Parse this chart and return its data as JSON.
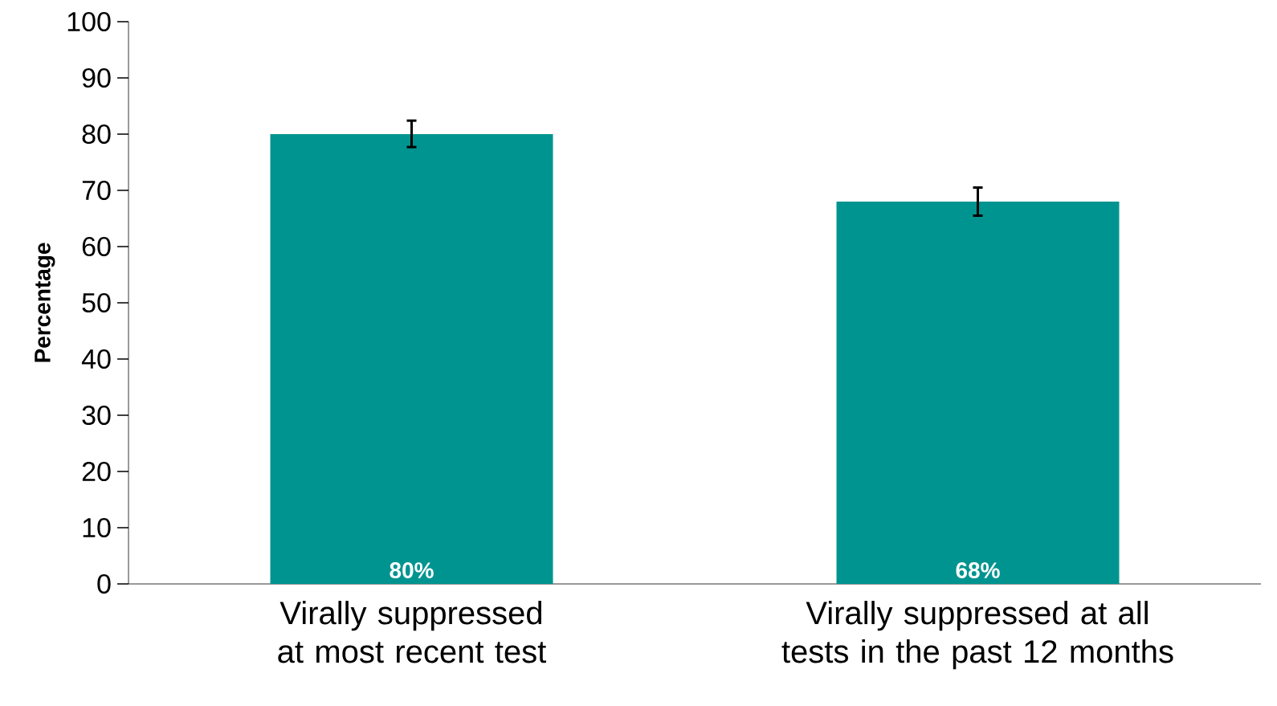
{
  "chart_data": {
    "type": "bar",
    "ylabel": "Percentage",
    "categories": [
      "Virally suppressed at most recent test",
      "Virally suppressed at all tests in the past 12 months"
    ],
    "values": [
      80,
      68
    ],
    "errors": [
      [
        77.7,
        82.4
      ],
      [
        65.5,
        70.5
      ]
    ],
    "value_labels": [
      "80%",
      "68%"
    ],
    "color": "#009490",
    "ylim": [
      0,
      100
    ],
    "yticks": [
      0,
      10,
      20,
      30,
      40,
      50,
      60,
      70,
      80,
      90,
      100
    ],
    "grid": false
  }
}
